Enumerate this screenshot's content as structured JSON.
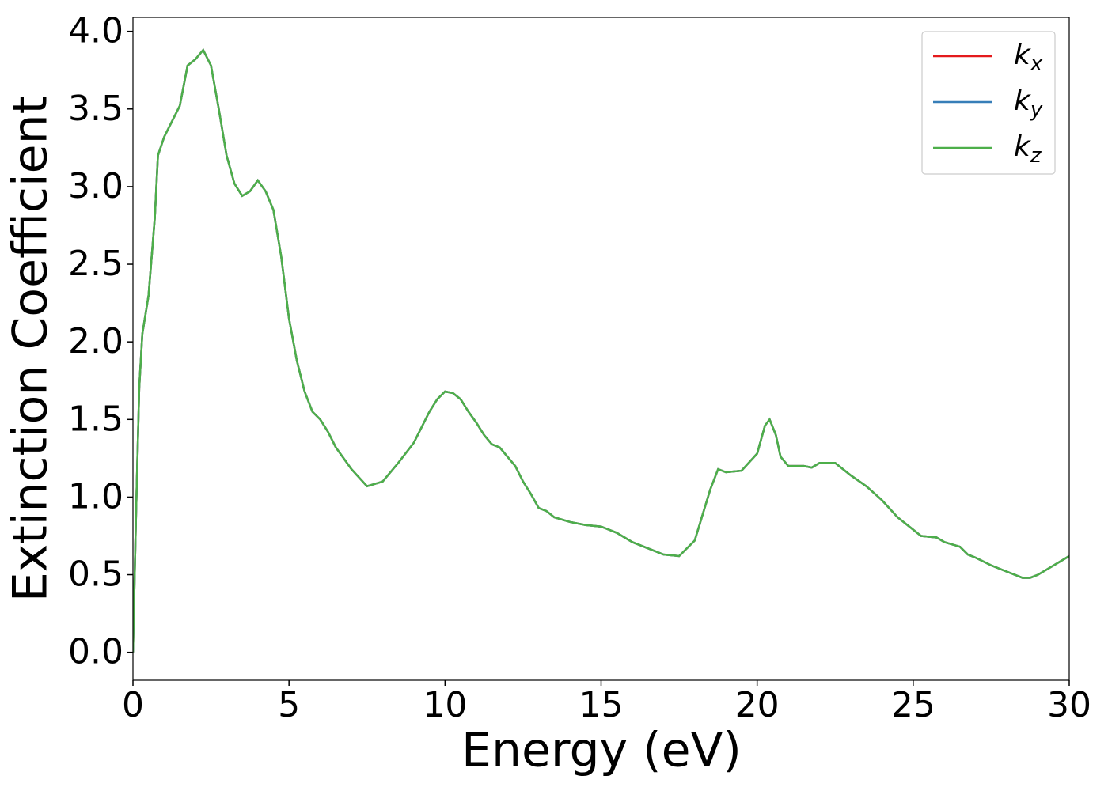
{
  "chart_data": {
    "type": "line",
    "xlabel": "Energy (eV)",
    "ylabel": "Extinction Coefficient",
    "x": [
      0,
      0.1,
      0.2,
      0.3,
      0.5,
      0.7,
      0.8,
      1.0,
      1.25,
      1.5,
      1.75,
      2.0,
      2.25,
      2.5,
      2.75,
      3.0,
      3.25,
      3.5,
      3.75,
      4.0,
      4.25,
      4.5,
      4.75,
      5.0,
      5.25,
      5.5,
      5.75,
      6.0,
      6.25,
      6.5,
      7.0,
      7.5,
      8.0,
      8.5,
      9.0,
      9.5,
      9.75,
      10.0,
      10.25,
      10.5,
      10.75,
      11.0,
      11.25,
      11.5,
      11.75,
      12.0,
      12.25,
      12.5,
      12.75,
      13.0,
      13.25,
      13.5,
      14.0,
      14.5,
      15.0,
      15.5,
      16.0,
      16.5,
      17.0,
      17.5,
      18.0,
      18.5,
      18.75,
      19.0,
      19.5,
      20.0,
      20.25,
      20.4,
      20.6,
      20.75,
      21.0,
      21.5,
      21.75,
      22.0,
      22.5,
      23.0,
      23.5,
      24.0,
      24.5,
      25.0,
      25.25,
      25.75,
      26.0,
      26.5,
      26.75,
      27.0,
      27.5,
      28.0,
      28.5,
      28.75,
      29.0,
      29.5,
      30.0
    ],
    "series": [
      {
        "name": "kx",
        "color": "#e41a1c",
        "values": [
          0,
          0.9,
          1.7,
          2.05,
          2.3,
          2.8,
          3.2,
          3.32,
          3.42,
          3.52,
          3.78,
          3.82,
          3.88,
          3.78,
          3.5,
          3.2,
          3.02,
          2.94,
          2.97,
          3.04,
          2.97,
          2.85,
          2.55,
          2.15,
          1.88,
          1.68,
          1.55,
          1.5,
          1.42,
          1.32,
          1.18,
          1.07,
          1.1,
          1.22,
          1.35,
          1.55,
          1.63,
          1.68,
          1.67,
          1.63,
          1.55,
          1.48,
          1.4,
          1.34,
          1.32,
          1.26,
          1.2,
          1.1,
          1.02,
          0.93,
          0.91,
          0.87,
          0.84,
          0.82,
          0.81,
          0.77,
          0.71,
          0.67,
          0.63,
          0.62,
          0.72,
          1.05,
          1.18,
          1.16,
          1.17,
          1.28,
          1.46,
          1.5,
          1.4,
          1.26,
          1.2,
          1.2,
          1.19,
          1.22,
          1.22,
          1.14,
          1.07,
          0.98,
          0.87,
          0.79,
          0.75,
          0.74,
          0.71,
          0.68,
          0.63,
          0.61,
          0.56,
          0.52,
          0.48,
          0.48,
          0.5,
          0.56,
          0.62
        ]
      },
      {
        "name": "ky",
        "color": "#377eb8",
        "values": [
          0,
          0.9,
          1.7,
          2.05,
          2.3,
          2.8,
          3.2,
          3.32,
          3.42,
          3.52,
          3.78,
          3.82,
          3.88,
          3.78,
          3.5,
          3.2,
          3.02,
          2.94,
          2.97,
          3.04,
          2.97,
          2.85,
          2.55,
          2.15,
          1.88,
          1.68,
          1.55,
          1.5,
          1.42,
          1.32,
          1.18,
          1.07,
          1.1,
          1.22,
          1.35,
          1.55,
          1.63,
          1.68,
          1.67,
          1.63,
          1.55,
          1.48,
          1.4,
          1.34,
          1.32,
          1.26,
          1.2,
          1.1,
          1.02,
          0.93,
          0.91,
          0.87,
          0.84,
          0.82,
          0.81,
          0.77,
          0.71,
          0.67,
          0.63,
          0.62,
          0.72,
          1.05,
          1.18,
          1.16,
          1.17,
          1.28,
          1.46,
          1.5,
          1.4,
          1.26,
          1.2,
          1.2,
          1.19,
          1.22,
          1.22,
          1.14,
          1.07,
          0.98,
          0.87,
          0.79,
          0.75,
          0.74,
          0.71,
          0.68,
          0.63,
          0.61,
          0.56,
          0.52,
          0.48,
          0.48,
          0.5,
          0.56,
          0.62
        ]
      },
      {
        "name": "kz",
        "color": "#4daf4a",
        "values": [
          0,
          0.9,
          1.7,
          2.05,
          2.3,
          2.8,
          3.2,
          3.32,
          3.42,
          3.52,
          3.78,
          3.82,
          3.88,
          3.78,
          3.5,
          3.2,
          3.02,
          2.94,
          2.97,
          3.04,
          2.97,
          2.85,
          2.55,
          2.15,
          1.88,
          1.68,
          1.55,
          1.5,
          1.42,
          1.32,
          1.18,
          1.07,
          1.1,
          1.22,
          1.35,
          1.55,
          1.63,
          1.68,
          1.67,
          1.63,
          1.55,
          1.48,
          1.4,
          1.34,
          1.32,
          1.26,
          1.2,
          1.1,
          1.02,
          0.93,
          0.91,
          0.87,
          0.84,
          0.82,
          0.81,
          0.77,
          0.71,
          0.67,
          0.63,
          0.62,
          0.72,
          1.05,
          1.18,
          1.16,
          1.17,
          1.28,
          1.46,
          1.5,
          1.4,
          1.26,
          1.2,
          1.2,
          1.19,
          1.22,
          1.22,
          1.14,
          1.07,
          0.98,
          0.87,
          0.79,
          0.75,
          0.74,
          0.71,
          0.68,
          0.63,
          0.61,
          0.56,
          0.52,
          0.48,
          0.48,
          0.5,
          0.56,
          0.62
        ]
      }
    ],
    "xlim": [
      0,
      30
    ],
    "xticks": [
      0,
      5,
      10,
      15,
      20,
      25,
      30
    ],
    "ylim": [
      -0.18,
      4.09
    ],
    "yticks": [
      {
        "value": 0,
        "label": "0.0"
      },
      0.5,
      {
        "value": 1,
        "label": "1.0"
      },
      1.5,
      {
        "value": 2,
        "label": "2.0"
      },
      2.5,
      {
        "value": 3,
        "label": "3.0"
      },
      3.5,
      {
        "value": 4,
        "label": "4.0"
      }
    ],
    "legend": "upper right",
    "grid": false
  }
}
